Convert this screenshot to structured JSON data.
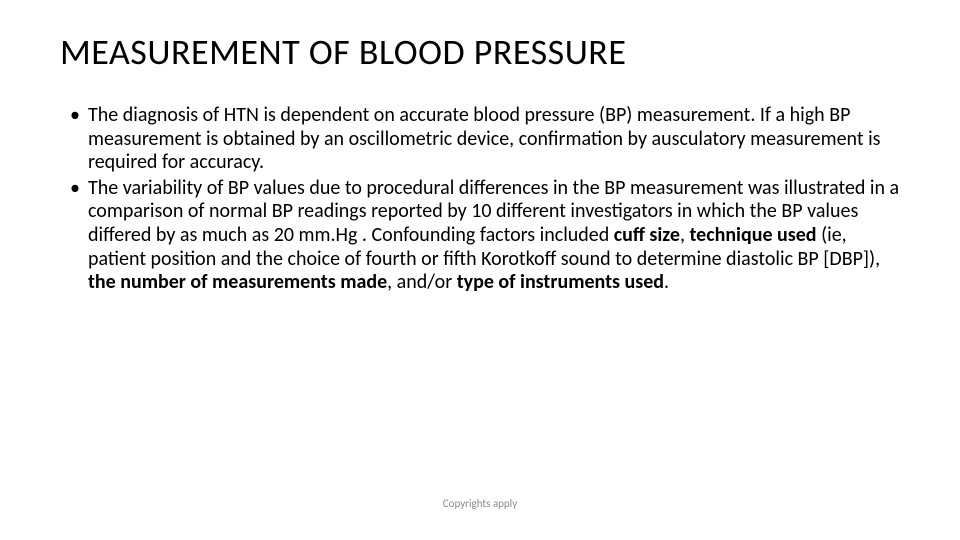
{
  "title": "MEASUREMENT OF BLOOD PRESSURE",
  "bullets": {
    "b1": "The diagnosis of HTN is dependent on accurate blood pressure (BP) measurement. If a high BP measurement is obtained by an oscillometric device, confirmation by ausculatory measurement is required for accuracy.",
    "b2_pre": "The variability of BP values due to procedural differences in the BP measurement was illustrated in a comparison of normal BP readings reported by 10 different investigators in which the BP values differed by as much as 20 mm.Hg . Confounding factors included ",
    "b2_cuff": "cuff size",
    "b2_comma1": ", ",
    "b2_technique": "technique used",
    "b2_paren": " (ie, patient position and the choice of fourth or fifth Korotkoff sound to determine diastolic BP [DBP]), ",
    "b2_number": "the number of measurements made",
    "b2_andor": ", and/or ",
    "b2_type": "type of instruments used",
    "b2_end": "."
  },
  "footer": "Copyrights apply",
  "style": {
    "background": "#ffffff",
    "text_color": "#000000",
    "footer_color": "#888888",
    "title_fontsize": 36,
    "body_fontsize": 20,
    "footer_fontsize": 11
  }
}
